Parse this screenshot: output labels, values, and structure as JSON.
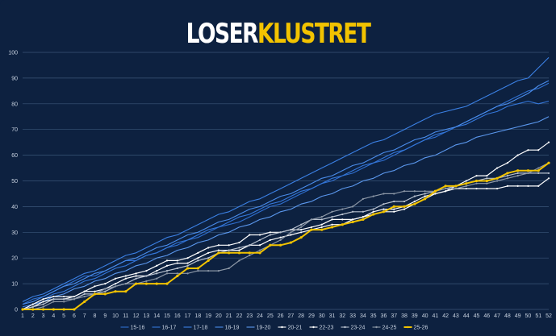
{
  "chart_data": {
    "type": "line",
    "title_part1": "LOSER",
    "title_part2": "KLUSTRET",
    "title_color1": "#ffffff",
    "title_color2": "#f2c300",
    "background": "#0d2140",
    "grid_color": "#3a5578",
    "x": [
      1,
      2,
      3,
      4,
      5,
      6,
      7,
      8,
      9,
      10,
      11,
      12,
      13,
      14,
      15,
      16,
      17,
      18,
      19,
      20,
      21,
      22,
      23,
      24,
      25,
      26,
      27,
      28,
      29,
      30,
      31,
      32,
      33,
      34,
      35,
      36,
      37,
      38,
      39,
      40,
      41,
      42,
      43,
      44,
      45,
      46,
      47,
      48,
      49,
      50,
      51,
      52
    ],
    "xlim": [
      1,
      52
    ],
    "ylim": [
      0,
      100
    ],
    "yticks": [
      0,
      10,
      20,
      30,
      40,
      50,
      60,
      70,
      80,
      90,
      100
    ],
    "grid": true,
    "legend_position": "bottom",
    "series": [
      {
        "name": "15-16",
        "color": "#2f6fd0",
        "marker": false,
        "width": 1.1,
        "values": [
          2,
          4,
          5,
          7,
          9,
          11,
          13,
          13,
          15,
          17,
          19,
          19,
          21,
          22,
          24,
          25,
          27,
          28,
          30,
          32,
          33,
          34,
          36,
          38,
          40,
          41,
          43,
          45,
          47,
          49,
          50,
          52,
          53,
          55,
          57,
          58,
          60,
          62,
          64,
          66,
          67,
          69,
          71,
          73,
          75,
          77,
          79,
          81,
          83,
          85,
          86,
          88
        ]
      },
      {
        "name": "16-17",
        "color": "#3477da",
        "marker": false,
        "width": 1.1,
        "values": [
          1,
          2,
          4,
          6,
          7,
          9,
          11,
          12,
          14,
          16,
          17,
          19,
          21,
          22,
          24,
          26,
          27,
          29,
          31,
          32,
          34,
          36,
          37,
          39,
          41,
          42,
          44,
          46,
          47,
          49,
          51,
          52,
          54,
          56,
          57,
          59,
          61,
          62,
          64,
          66,
          68,
          69,
          71,
          72,
          74,
          76,
          77,
          79,
          80,
          81,
          80,
          81
        ]
      },
      {
        "name": "17-18",
        "color": "#3b80e4",
        "marker": false,
        "width": 1.1,
        "values": [
          3,
          5,
          6,
          8,
          10,
          12,
          14,
          15,
          17,
          19,
          21,
          22,
          24,
          26,
          28,
          29,
          31,
          33,
          35,
          37,
          38,
          40,
          42,
          43,
          45,
          47,
          49,
          51,
          53,
          55,
          57,
          59,
          61,
          63,
          65,
          66,
          68,
          70,
          72,
          74,
          76,
          77,
          78,
          79,
          81,
          83,
          85,
          87,
          89,
          90,
          94,
          98
        ]
      },
      {
        "name": "18-19",
        "color": "#4a8cea",
        "marker": false,
        "width": 1.1,
        "values": [
          2,
          3,
          5,
          7,
          9,
          10,
          12,
          14,
          15,
          17,
          19,
          20,
          22,
          24,
          25,
          27,
          29,
          30,
          32,
          34,
          35,
          37,
          39,
          40,
          42,
          44,
          45,
          47,
          49,
          51,
          52,
          54,
          56,
          57,
          59,
          61,
          62,
          64,
          66,
          67,
          69,
          70,
          71,
          73,
          75,
          77,
          79,
          80,
          82,
          84,
          87,
          89
        ]
      },
      {
        "name": "19-20",
        "color": "#5b98ee",
        "marker": false,
        "width": 1.1,
        "values": [
          0,
          2,
          3,
          5,
          6,
          8,
          9,
          11,
          12,
          14,
          15,
          17,
          18,
          20,
          21,
          23,
          24,
          26,
          27,
          29,
          30,
          32,
          33,
          35,
          36,
          38,
          39,
          41,
          42,
          44,
          45,
          47,
          48,
          50,
          51,
          53,
          54,
          56,
          57,
          59,
          60,
          62,
          64,
          65,
          67,
          68,
          69,
          70,
          71,
          72,
          73,
          75
        ]
      },
      {
        "name": "20-21",
        "color": "#ffffff",
        "marker": true,
        "width": 1.2,
        "values": [
          0,
          1,
          3,
          4,
          4,
          5,
          7,
          7,
          8,
          10,
          12,
          13,
          13,
          15,
          17,
          18,
          18,
          20,
          22,
          23,
          23,
          23,
          25,
          25,
          27,
          28,
          29,
          30,
          31,
          32,
          33,
          33,
          35,
          36,
          37,
          38,
          38,
          39,
          41,
          43,
          45,
          46,
          47,
          47,
          47,
          47,
          47,
          48,
          48,
          48,
          48,
          51
        ]
      },
      {
        "name": "22-23",
        "color": "#ffffff",
        "marker": true,
        "width": 1.2,
        "values": [
          0,
          2,
          4,
          5,
          5,
          5,
          7,
          9,
          10,
          12,
          13,
          14,
          15,
          17,
          19,
          19,
          20,
          22,
          24,
          25,
          25,
          26,
          29,
          29,
          30,
          30,
          31,
          31,
          32,
          33,
          35,
          35,
          35,
          36,
          38,
          39,
          39,
          40,
          42,
          44,
          45,
          46,
          48,
          50,
          52,
          52,
          55,
          57,
          60,
          62,
          62,
          65
        ]
      },
      {
        "name": "23-24",
        "color": "#b9c2cf",
        "marker": true,
        "width": 1.2,
        "values": [
          0,
          1,
          2,
          4,
          4,
          4,
          6,
          6,
          7,
          9,
          10,
          12,
          13,
          14,
          15,
          16,
          17,
          19,
          20,
          22,
          23,
          24,
          25,
          27,
          29,
          30,
          31,
          33,
          35,
          35,
          36,
          37,
          38,
          38,
          39,
          41,
          42,
          42,
          44,
          45,
          46,
          47,
          48,
          49,
          50,
          51,
          51,
          52,
          53,
          53,
          53,
          53
        ]
      },
      {
        "name": "24-25",
        "color": "#8c97a6",
        "marker": true,
        "width": 1.2,
        "values": [
          0,
          0,
          1,
          3,
          3,
          4,
          5,
          6,
          8,
          9,
          10,
          10,
          11,
          12,
          14,
          14,
          14,
          15,
          15,
          15,
          16,
          19,
          21,
          23,
          25,
          27,
          30,
          32,
          35,
          36,
          38,
          39,
          40,
          43,
          44,
          45,
          45,
          46,
          46,
          46,
          46,
          47,
          47,
          48,
          49,
          49,
          50,
          51,
          52,
          53,
          55,
          57
        ]
      },
      {
        "name": "25-26",
        "color": "#f2c300",
        "marker": true,
        "width": 2.0,
        "values": [
          0,
          0,
          0,
          0,
          0,
          0,
          3,
          6,
          6,
          7,
          7,
          10,
          10,
          10,
          10,
          13,
          16,
          16,
          19,
          22,
          22,
          22,
          22,
          22,
          25,
          25,
          26,
          28,
          31,
          31,
          32,
          33,
          34,
          35,
          37,
          38,
          40,
          40,
          41,
          43,
          46,
          48,
          48,
          49,
          50,
          50,
          51,
          53,
          54,
          54,
          54,
          57
        ]
      }
    ]
  }
}
